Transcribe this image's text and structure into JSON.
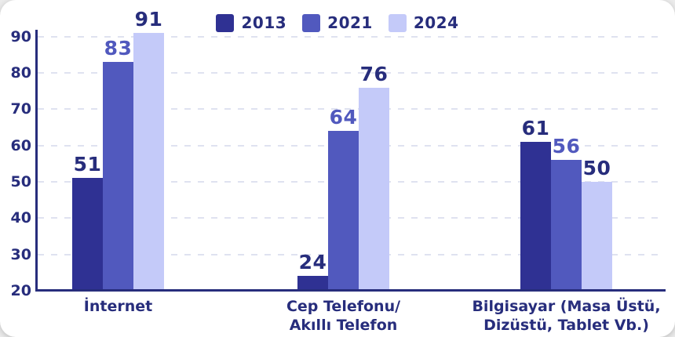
{
  "page": {
    "background_color": "#ebebeb",
    "card_color": "#ffffff"
  },
  "chart_data": {
    "type": "bar",
    "title": "",
    "categories": [
      {
        "lines": [
          "İnternet"
        ]
      },
      {
        "lines": [
          "Cep Telefonu/",
          "Akıllı Telefon"
        ]
      },
      {
        "lines": [
          "Bilgisayar (Masa Üstü,",
          "Dizüstü, Tablet Vb.)"
        ]
      }
    ],
    "series": [
      {
        "name": "2013",
        "color": "#2f3193",
        "label_color": "#272d7c",
        "values": [
          51,
          24,
          61
        ]
      },
      {
        "name": "2021",
        "color": "#5159be",
        "label_color": "#5159be",
        "values": [
          83,
          64,
          56
        ]
      },
      {
        "name": "2024",
        "color": "#c4caf9",
        "label_color": "#272d7c",
        "values": [
          91,
          76,
          50
        ]
      }
    ],
    "y_axis": {
      "min": 20,
      "max": 92,
      "ticks": [
        20,
        30,
        40,
        50,
        60,
        70,
        80,
        90
      ],
      "label_color": "#272d7c",
      "axis_color": "#272d7c"
    },
    "gridlines": {
      "style": "dashed",
      "color": "#dfe2f0",
      "ticks": [
        30,
        40,
        50,
        60,
        70,
        80,
        90
      ]
    },
    "legend": {
      "position": "top-center",
      "items": [
        "2013",
        "2021",
        "2024"
      ]
    }
  }
}
